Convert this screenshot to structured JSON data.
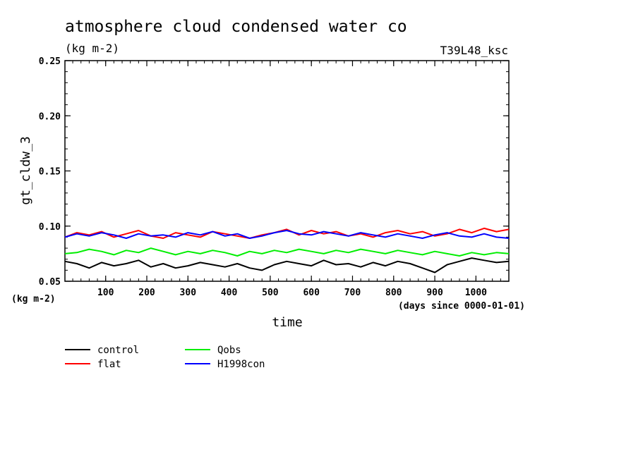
{
  "chart_data": {
    "type": "line",
    "title": "atmosphere cloud condensed water co",
    "subtitle": "(kg m-2)",
    "run_label": "T39L48_ksc",
    "ylabel": "gt_cldw_3",
    "yunit": "(kg m-2)",
    "xlabel": "time",
    "xunit": "(days since 0000-01-01)",
    "xlim": [
      1,
      1080
    ],
    "ylim": [
      0.05,
      0.25
    ],
    "xticks": [
      100,
      200,
      300,
      400,
      500,
      600,
      700,
      800,
      900,
      1000
    ],
    "xtick_labels": [
      "100",
      "200",
      "300",
      "400",
      "500",
      "600",
      "700",
      "800",
      "900",
      "1000"
    ],
    "yticks": [
      0.05,
      0.1,
      0.15,
      0.2,
      0.25
    ],
    "ytick_labels": [
      "0.05",
      "0.10",
      "0.15",
      "0.20",
      "0.25"
    ],
    "grid": false,
    "legend_position": "bottom-left below plot",
    "x": [
      1,
      30,
      60,
      90,
      120,
      150,
      180,
      210,
      240,
      270,
      300,
      330,
      360,
      390,
      420,
      450,
      480,
      510,
      540,
      570,
      600,
      630,
      660,
      690,
      720,
      750,
      780,
      810,
      840,
      870,
      900,
      930,
      960,
      990,
      1020,
      1050,
      1080
    ],
    "series": [
      {
        "name": "control",
        "color": "#000000",
        "values": [
          0.068,
          0.066,
          0.062,
          0.067,
          0.064,
          0.066,
          0.069,
          0.063,
          0.066,
          0.062,
          0.064,
          0.067,
          0.065,
          0.063,
          0.066,
          0.062,
          0.06,
          0.065,
          0.068,
          0.066,
          0.064,
          0.069,
          0.065,
          0.066,
          0.063,
          0.067,
          0.064,
          0.068,
          0.066,
          0.062,
          0.058,
          0.065,
          0.068,
          0.071,
          0.069,
          0.067,
          0.068
        ]
      },
      {
        "name": "flat",
        "color": "#ff0000",
        "values": [
          0.09,
          0.094,
          0.092,
          0.095,
          0.09,
          0.093,
          0.096,
          0.091,
          0.089,
          0.094,
          0.092,
          0.09,
          0.095,
          0.093,
          0.091,
          0.089,
          0.092,
          0.094,
          0.097,
          0.092,
          0.096,
          0.093,
          0.095,
          0.091,
          0.093,
          0.09,
          0.094,
          0.096,
          0.093,
          0.095,
          0.091,
          0.093,
          0.097,
          0.094,
          0.098,
          0.095,
          0.097
        ]
      },
      {
        "name": "Qobs",
        "color": "#00ee00",
        "values": [
          0.075,
          0.076,
          0.079,
          0.077,
          0.074,
          0.078,
          0.076,
          0.08,
          0.077,
          0.074,
          0.077,
          0.075,
          0.078,
          0.076,
          0.073,
          0.077,
          0.075,
          0.078,
          0.076,
          0.079,
          0.077,
          0.075,
          0.078,
          0.076,
          0.079,
          0.077,
          0.075,
          0.078,
          0.076,
          0.074,
          0.077,
          0.075,
          0.073,
          0.076,
          0.074,
          0.076,
          0.075
        ]
      },
      {
        "name": "H1998con",
        "color": "#0000ff",
        "values": [
          0.09,
          0.093,
          0.091,
          0.094,
          0.092,
          0.089,
          0.093,
          0.091,
          0.092,
          0.09,
          0.094,
          0.092,
          0.095,
          0.091,
          0.093,
          0.089,
          0.091,
          0.094,
          0.096,
          0.093,
          0.092,
          0.095,
          0.093,
          0.091,
          0.094,
          0.092,
          0.09,
          0.093,
          0.091,
          0.089,
          0.092,
          0.094,
          0.091,
          0.09,
          0.093,
          0.09,
          0.089
        ]
      }
    ]
  }
}
